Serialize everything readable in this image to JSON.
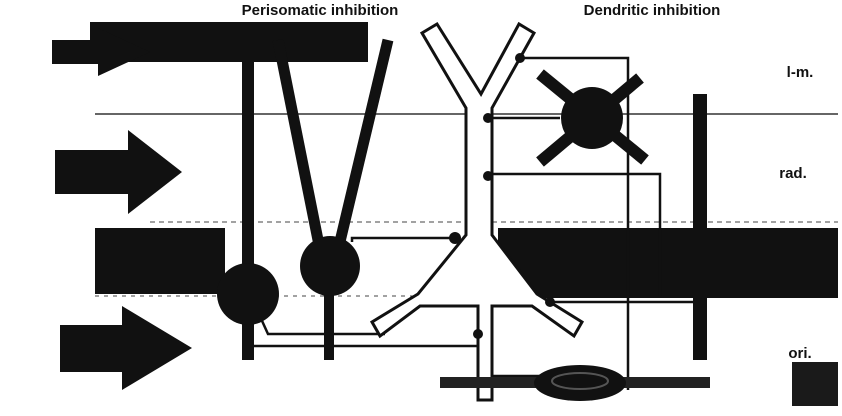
{
  "headings": {
    "perisomatic": "Perisomatic inhibition",
    "dendritic": "Dendritic inhibition"
  },
  "layers": {
    "lm": "l-m.",
    "rad": "rad.",
    "ori": "ori."
  },
  "colors": {
    "ink": "#111111",
    "band": "#1a1a1a",
    "neuron_fill": "#ffffff",
    "background": "#ffffff"
  }
}
